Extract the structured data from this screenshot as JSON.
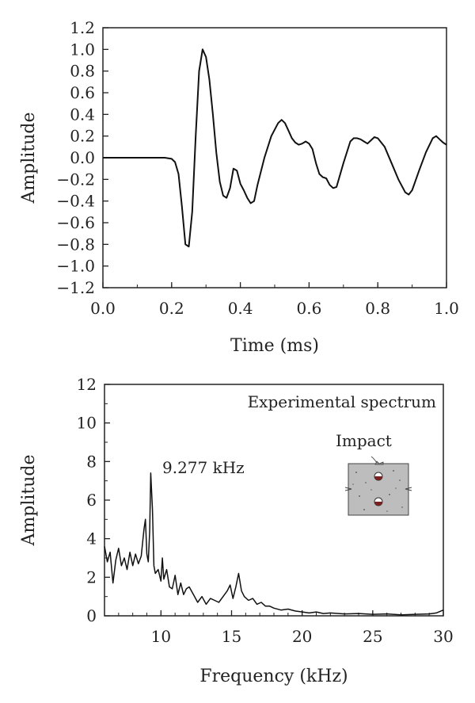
{
  "chart_data": [
    {
      "type": "line",
      "xlabel": "Time (ms)",
      "ylabel": "Amplitude",
      "xlim": [
        0.0,
        1.0
      ],
      "ylim": [
        -1.2,
        1.2
      ],
      "xticks": [
        "0.0",
        "0.2",
        "0.4",
        "0.6",
        "0.8",
        "1.0"
      ],
      "xtick_values": [
        0.0,
        0.2,
        0.4,
        0.6,
        0.8,
        1.0
      ],
      "yticks": [
        "1.2",
        "1.0",
        "0.8",
        "0.6",
        "0.4",
        "0.2",
        "0.0",
        "−0.2",
        "−0.4",
        "−0.6",
        "−0.8",
        "−1.0",
        "−1.2"
      ],
      "ytick_values": [
        1.2,
        1.0,
        0.8,
        0.6,
        0.4,
        0.2,
        0.0,
        -0.2,
        -0.4,
        -0.6,
        -0.8,
        -1.0,
        -1.2
      ],
      "grid": false,
      "series": [
        {
          "x": [
            0.0,
            0.05,
            0.1,
            0.15,
            0.18,
            0.2,
            0.21,
            0.22,
            0.23,
            0.24,
            0.25,
            0.26,
            0.27,
            0.28,
            0.29,
            0.3,
            0.31,
            0.32,
            0.33,
            0.34,
            0.35,
            0.36,
            0.37,
            0.38,
            0.39,
            0.4,
            0.41,
            0.42,
            0.43,
            0.44,
            0.45,
            0.47,
            0.49,
            0.51,
            0.52,
            0.53,
            0.54,
            0.55,
            0.56,
            0.57,
            0.58,
            0.59,
            0.6,
            0.61,
            0.62,
            0.63,
            0.64,
            0.65,
            0.66,
            0.67,
            0.68,
            0.7,
            0.72,
            0.73,
            0.74,
            0.75,
            0.76,
            0.77,
            0.78,
            0.79,
            0.8,
            0.82,
            0.84,
            0.86,
            0.88,
            0.89,
            0.9,
            0.92,
            0.94,
            0.96,
            0.97,
            0.98,
            0.99,
            1.0
          ],
          "values": [
            0.0,
            0.0,
            0.0,
            0.0,
            0.0,
            -0.01,
            -0.04,
            -0.15,
            -0.45,
            -0.8,
            -0.82,
            -0.5,
            0.2,
            0.8,
            1.0,
            0.93,
            0.72,
            0.4,
            0.05,
            -0.22,
            -0.35,
            -0.37,
            -0.28,
            -0.1,
            -0.12,
            -0.24,
            -0.3,
            -0.37,
            -0.42,
            -0.4,
            -0.25,
            0.0,
            0.2,
            0.32,
            0.35,
            0.32,
            0.25,
            0.18,
            0.14,
            0.12,
            0.13,
            0.15,
            0.13,
            0.08,
            -0.05,
            -0.15,
            -0.18,
            -0.19,
            -0.25,
            -0.28,
            -0.27,
            -0.05,
            0.15,
            0.18,
            0.18,
            0.17,
            0.15,
            0.13,
            0.16,
            0.19,
            0.18,
            0.1,
            -0.05,
            -0.2,
            -0.32,
            -0.34,
            -0.3,
            -0.12,
            0.05,
            0.18,
            0.2,
            0.17,
            0.14,
            0.12
          ]
        }
      ]
    },
    {
      "type": "line",
      "xlabel": "Frequency (kHz)",
      "ylabel": "Amplitude",
      "xlim": [
        6,
        30
      ],
      "ylim": [
        0,
        12
      ],
      "xticks": [
        "10",
        "15",
        "20",
        "25",
        "30"
      ],
      "xtick_values": [
        10,
        15,
        20,
        25,
        30
      ],
      "yticks": [
        "0",
        "2",
        "4",
        "6",
        "8",
        "10",
        "12"
      ],
      "ytick_values": [
        0,
        2,
        4,
        6,
        8,
        10,
        12
      ],
      "grid": false,
      "series": [
        {
          "name": "Experimental spectrum",
          "x": [
            6.0,
            6.2,
            6.4,
            6.6,
            6.8,
            7.0,
            7.2,
            7.4,
            7.6,
            7.8,
            8.0,
            8.2,
            8.4,
            8.6,
            8.8,
            8.9,
            9.0,
            9.1,
            9.2,
            9.277,
            9.4,
            9.5,
            9.6,
            9.8,
            10.0,
            10.1,
            10.2,
            10.4,
            10.6,
            10.8,
            11.0,
            11.2,
            11.4,
            11.6,
            11.8,
            12.0,
            12.3,
            12.6,
            12.9,
            13.2,
            13.5,
            13.8,
            14.1,
            14.4,
            14.7,
            14.9,
            15.1,
            15.3,
            15.5,
            15.7,
            15.9,
            16.2,
            16.5,
            16.8,
            17.1,
            17.4,
            17.7,
            18.0,
            18.5,
            19.0,
            19.5,
            20.0,
            20.5,
            21.0,
            21.5,
            22.0,
            23.0,
            24.0,
            25.0,
            26.0,
            27.0,
            28.0,
            29.0,
            29.5,
            30.0
          ],
          "values": [
            3.6,
            2.8,
            3.3,
            1.7,
            2.9,
            3.5,
            2.6,
            3.0,
            2.4,
            3.3,
            2.6,
            3.2,
            2.7,
            3.1,
            4.5,
            5.0,
            3.2,
            2.8,
            4.4,
            7.4,
            5.5,
            2.6,
            2.2,
            2.4,
            1.8,
            3.0,
            1.9,
            2.4,
            1.5,
            1.4,
            2.1,
            1.1,
            1.7,
            1.1,
            1.4,
            1.5,
            1.1,
            0.7,
            1.0,
            0.6,
            0.9,
            0.8,
            0.7,
            1.0,
            1.3,
            1.6,
            0.9,
            1.5,
            2.2,
            1.3,
            1.0,
            0.8,
            0.9,
            0.6,
            0.7,
            0.5,
            0.5,
            0.4,
            0.3,
            0.35,
            0.25,
            0.2,
            0.15,
            0.2,
            0.12,
            0.15,
            0.1,
            0.12,
            0.08,
            0.1,
            0.05,
            0.08,
            0.1,
            0.15,
            0.3
          ]
        }
      ],
      "annotations": [
        {
          "text": "9.277 kHz",
          "x": 9.277,
          "y": 7.4
        },
        {
          "text": "Impact"
        }
      ]
    }
  ]
}
